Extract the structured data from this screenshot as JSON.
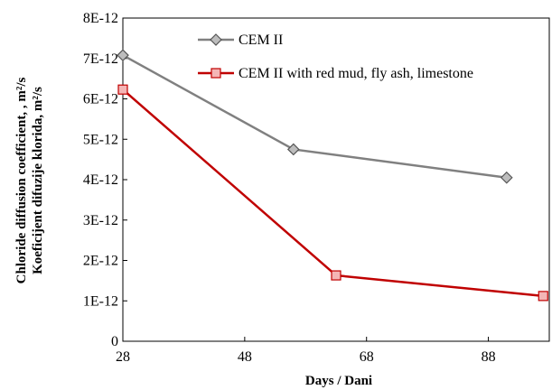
{
  "chart_data": {
    "type": "line",
    "xlabel": "Days / Dani",
    "ylabel_lines": [
      "Koeficijent difuzije klorida, m²/s",
      "Chloride diffusion coefficient, , m²/s"
    ],
    "xlim": [
      28,
      98
    ],
    "ylim": [
      0,
      8e-12
    ],
    "x_ticks": [
      28,
      48,
      68,
      88
    ],
    "y_ticks": [
      0,
      1e-12,
      2e-12,
      3e-12,
      4e-12,
      5e-12,
      6e-12,
      7e-12,
      8e-12
    ],
    "y_tick_labels": [
      "0",
      "1E-12",
      "2E-12",
      "3E-12",
      "4E-12",
      "5E-12",
      "6E-12",
      "7E-12",
      "8E-12"
    ],
    "grid": false,
    "legend_position": "top-right",
    "series": [
      {
        "name": "CEM II",
        "color": "#808080",
        "marker": "diamond",
        "marker_fill": "#bdbdbd",
        "x": [
          28,
          56,
          91
        ],
        "y": [
          7.08e-12,
          4.75e-12,
          4.05e-12
        ]
      },
      {
        "name": "CEM II with red mud, fly ash, limestone",
        "color": "#c00000",
        "marker": "square",
        "marker_fill": "#f4b6b6",
        "x": [
          28,
          63,
          97
        ],
        "y": [
          6.23e-12,
          1.63e-12,
          1.12e-12
        ]
      }
    ]
  }
}
